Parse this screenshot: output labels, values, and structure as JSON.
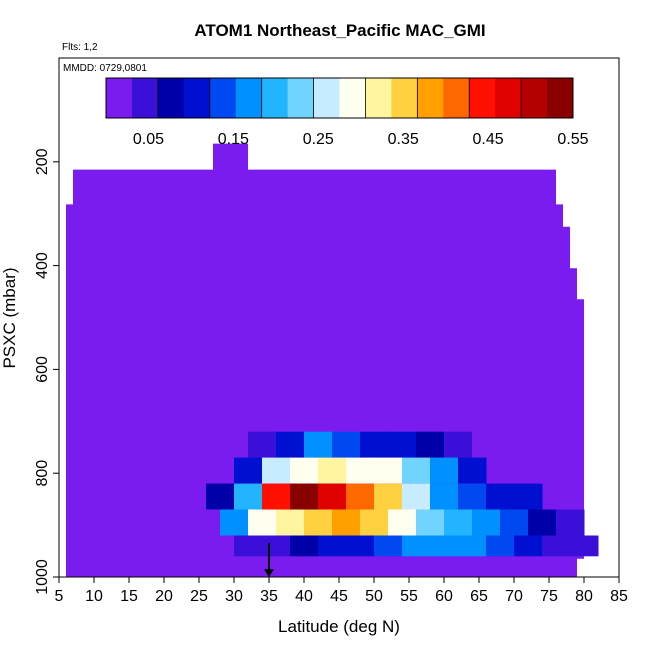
{
  "chart_data": {
    "type": "heatmap",
    "title": "ATOM1 Northeast_Pacific MAC_GMI",
    "flights_note": "Flts: 1,2",
    "date_note": "MMDD: 0729,0801",
    "xlabel": "Latitude (deg N)",
    "ylabel": "PSXC (mbar)",
    "xlim": [
      5,
      85
    ],
    "ylim": [
      1000,
      0
    ],
    "x_ticks": [
      "5",
      "10",
      "15",
      "20",
      "25",
      "30",
      "35",
      "40",
      "45",
      "50",
      "55",
      "60",
      "65",
      "70",
      "75",
      "80",
      "85"
    ],
    "y_ticks": [
      "200",
      "400",
      "600",
      "800",
      "1000"
    ],
    "colorbar": {
      "range": [
        0,
        0.55
      ],
      "ticks": [
        "0.05",
        "0.15",
        "0.25",
        "0.35",
        "0.45",
        "0.55"
      ],
      "colors": [
        "#7a1cf0",
        "#3a10d8",
        "#0000a8",
        "#0010d0",
        "#0048f0",
        "#0090ff",
        "#22b4ff",
        "#70d4ff",
        "#c8ecff",
        "#fffff0",
        "#fff4a0",
        "#ffd040",
        "#ffa000",
        "#ff6800",
        "#ff1000",
        "#e00000",
        "#b40000",
        "#880000"
      ]
    },
    "background_value": 0.0,
    "flight_marker_latitude": 35,
    "series": [
      {
        "pressure": [
          720,
          770
        ],
        "lat": [
          32,
          36,
          40,
          44,
          48,
          52,
          56,
          60,
          64
        ],
        "values": [
          0.05,
          0.12,
          0.16,
          0.14,
          0.12,
          0.1,
          0.07,
          0.05,
          0.03
        ]
      },
      {
        "pressure": [
          770,
          820
        ],
        "lat": [
          30,
          34,
          38,
          42,
          46,
          50,
          54,
          58,
          62
        ],
        "values": [
          0.1,
          0.25,
          0.3,
          0.31,
          0.3,
          0.28,
          0.24,
          0.18,
          0.1
        ]
      },
      {
        "pressure": [
          820,
          870
        ],
        "lat": [
          26,
          30,
          34,
          38,
          42,
          46,
          50,
          54,
          58,
          62,
          66,
          70
        ],
        "values": [
          0.08,
          0.2,
          0.45,
          0.52,
          0.48,
          0.4,
          0.34,
          0.26,
          0.18,
          0.14,
          0.12,
          0.1
        ]
      },
      {
        "pressure": [
          870,
          920
        ],
        "lat": [
          28,
          32,
          36,
          40,
          44,
          48,
          52,
          56,
          60,
          64,
          68,
          72,
          76
        ],
        "values": [
          0.16,
          0.3,
          0.33,
          0.36,
          0.38,
          0.34,
          0.3,
          0.24,
          0.2,
          0.17,
          0.14,
          0.08,
          0.05
        ]
      },
      {
        "pressure": [
          920,
          960
        ],
        "lat": [
          26,
          30,
          34,
          38,
          42,
          46,
          50,
          54,
          58,
          62,
          66,
          70,
          74,
          78
        ],
        "values": [
          0.03,
          0.04,
          0.06,
          0.08,
          0.1,
          0.12,
          0.14,
          0.16,
          0.17,
          0.16,
          0.14,
          0.1,
          0.06,
          0.04
        ]
      }
    ]
  }
}
